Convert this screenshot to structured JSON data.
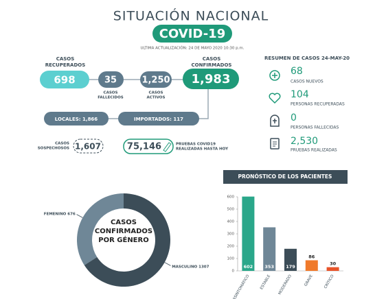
{
  "header": {
    "title": "SITUACIÓN NACIONAL",
    "badge": "COVID-19",
    "updated": "ULTIMA ACTUALIZACIÓN: 24 DE MAYO 2020 10:30 p.m."
  },
  "cases": {
    "recovered": {
      "label": [
        "CASOS",
        "RECUPERADOS"
      ],
      "value": "698"
    },
    "deceased": {
      "label": [
        "CASOS",
        "FALLECIDOS"
      ],
      "value": "35"
    },
    "active": {
      "label": [
        "CASOS",
        "ACTIVOS"
      ],
      "value": "1,250"
    },
    "confirmed": {
      "label": [
        "CASOS",
        "CONFIRMADOS"
      ],
      "value": "1,983"
    },
    "local": "LOCALES: 1,866",
    "imported": "IMPORTADOS: 117",
    "suspected": {
      "label": [
        "CASOS",
        "SOSPECHOSOS"
      ],
      "value": "1,607"
    },
    "tests": {
      "label": [
        "PRUEBAS COVID19",
        "REALIZADAS HASTA HOY"
      ],
      "value": "75,146"
    }
  },
  "summary": {
    "title": "RESUMEN DE CASOS 24-MAY-20",
    "items": [
      {
        "value": "68",
        "label": "CASOS NUEVOS"
      },
      {
        "value": "104",
        "label": "PERSONAS RECUPERADAS"
      },
      {
        "value": "0",
        "label": "PERSONAS FALLECIDAS"
      },
      {
        "value": "2,530",
        "label": "PRUEBAS REALIZADAS"
      }
    ]
  },
  "chart_data": [
    {
      "type": "pie",
      "title": "CASOS CONFIRMADOS POR GÉNERO",
      "categories": [
        "FEMENINO",
        "MASCULINO"
      ],
      "values": [
        676,
        1307
      ],
      "colors": [
        "#6f8797",
        "#3c4d58"
      ]
    },
    {
      "type": "bar",
      "title": "PRONÓSTICO DE LOS PACIENTES",
      "categories": [
        "ASINTOMÁTICO",
        "ESTABLE",
        "MODERADO",
        "GRAVE",
        "CRÍTICO"
      ],
      "values": [
        602,
        353,
        179,
        86,
        30
      ],
      "colors": [
        "#2aa78a",
        "#6f8797",
        "#3c4d58",
        "#f07a2b",
        "#e8542a"
      ],
      "ylim": [
        0,
        600
      ],
      "yticks": [
        0,
        100,
        200,
        300,
        400,
        500,
        600
      ],
      "grid": false
    }
  ]
}
